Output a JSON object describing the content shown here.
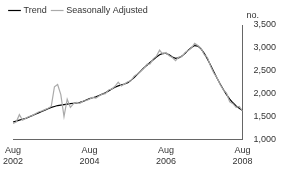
{
  "chart_data": {
    "type": "line",
    "ylabel": "no.",
    "categories": [
      "Aug 2002",
      null,
      null,
      null,
      null,
      null,
      null,
      null,
      null,
      null,
      null,
      null,
      null,
      null,
      null,
      null,
      null,
      null,
      null,
      null,
      null,
      null,
      null,
      null,
      "Aug 2004",
      null,
      null,
      null,
      null,
      null,
      null,
      null,
      null,
      null,
      null,
      null,
      null,
      null,
      null,
      null,
      null,
      null,
      null,
      null,
      null,
      null,
      null,
      null,
      "Aug 2006",
      null,
      null,
      null,
      null,
      null,
      null,
      null,
      null,
      null,
      null,
      null,
      null,
      null,
      null,
      null,
      null,
      null,
      null,
      null,
      null,
      null,
      null,
      null,
      "Aug 2008"
    ],
    "series": [
      {
        "name": "Trend",
        "color": "#000000",
        "values": [
          1380,
          1400,
          1420,
          1440,
          1460,
          1490,
          1520,
          1550,
          1580,
          1610,
          1640,
          1670,
          1700,
          1720,
          1740,
          1750,
          1760,
          1770,
          1780,
          1790,
          1800,
          1810,
          1830,
          1860,
          1890,
          1910,
          1930,
          1960,
          1990,
          2020,
          2060,
          2100,
          2140,
          2170,
          2190,
          2210,
          2240,
          2290,
          2350,
          2420,
          2490,
          2560,
          2620,
          2680,
          2740,
          2800,
          2850,
          2880,
          2880,
          2850,
          2800,
          2770,
          2780,
          2820,
          2880,
          2950,
          3010,
          3050,
          3040,
          2980,
          2880,
          2760,
          2620,
          2480,
          2340,
          2210,
          2090,
          1980,
          1880,
          1800,
          1730,
          1680,
          1630
        ]
      },
      {
        "name": "Seasonally Adjusted",
        "color": "#aaaaaa",
        "values": [
          1350,
          1380,
          1540,
          1420,
          1460,
          1500,
          1520,
          1560,
          1600,
          1620,
          1650,
          1680,
          1720,
          2150,
          2200,
          1980,
          1500,
          1880,
          1700,
          1780,
          1810,
          1790,
          1840,
          1850,
          1880,
          1920,
          1900,
          1950,
          1990,
          2000,
          2080,
          2100,
          2160,
          2250,
          2170,
          2210,
          2260,
          2280,
          2380,
          2430,
          2490,
          2550,
          2640,
          2650,
          2760,
          2820,
          2950,
          2860,
          2900,
          2830,
          2790,
          2720,
          2800,
          2810,
          2900,
          2940,
          3000,
          3100,
          3050,
          2990,
          2850,
          2790,
          2600,
          2450,
          2350,
          2200,
          2080,
          2010,
          1820,
          1780,
          1700,
          1720,
          1620
        ]
      }
    ],
    "ylim": [
      1000,
      3500
    ],
    "yticks": [
      1000,
      1500,
      2000,
      2500,
      3000,
      3500
    ],
    "grid": false,
    "legend": "top-left"
  }
}
